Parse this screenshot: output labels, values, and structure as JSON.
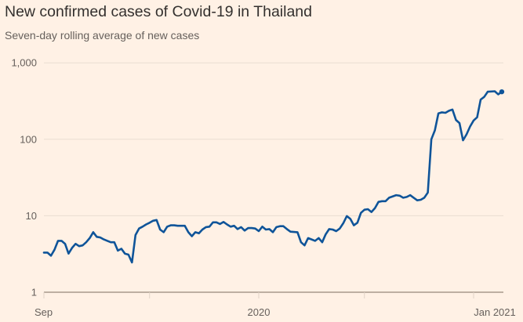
{
  "chart_data": {
    "type": "line",
    "title": "New confirmed cases of Covid-19 in Thailand",
    "subtitle": "Seven-day rolling average of new cases",
    "xlabel": "",
    "ylabel": "",
    "yscale": "log",
    "ylim": [
      1,
      1000
    ],
    "y_ticks": [
      {
        "value": 1,
        "label": "1"
      },
      {
        "value": 10,
        "label": "10"
      },
      {
        "value": 100,
        "label": "100"
      },
      {
        "value": 1000,
        "label": "1,000"
      }
    ],
    "xlim": [
      "2020-09-01",
      "2021-01-09"
    ],
    "x_ticks": [
      {
        "date": "2020-09-01",
        "label": "Sep"
      },
      {
        "date": "2020-10-01",
        "label": ""
      },
      {
        "date": "2020-11-01",
        "label": "2020"
      },
      {
        "date": "2020-12-01",
        "label": ""
      },
      {
        "date": "2021-01-01",
        "label": "Jan 2021"
      }
    ],
    "grid": true,
    "line_color": "#0f5499",
    "end_marker": true,
    "series": [
      {
        "x": [
          "2020-09-01",
          "2020-09-02",
          "2020-09-03",
          "2020-09-04",
          "2020-09-05",
          "2020-09-06",
          "2020-09-07",
          "2020-09-08",
          "2020-09-09",
          "2020-09-10",
          "2020-09-11",
          "2020-09-12",
          "2020-09-13",
          "2020-09-14",
          "2020-09-15",
          "2020-09-16",
          "2020-09-17",
          "2020-09-18",
          "2020-09-19",
          "2020-09-20",
          "2020-09-21",
          "2020-09-22",
          "2020-09-23",
          "2020-09-24",
          "2020-09-25",
          "2020-09-26",
          "2020-09-27",
          "2020-09-28",
          "2020-09-29",
          "2020-09-30",
          "2020-10-01",
          "2020-10-02",
          "2020-10-03",
          "2020-10-04",
          "2020-10-05",
          "2020-10-06",
          "2020-10-07",
          "2020-10-08",
          "2020-10-09",
          "2020-10-11",
          "2020-10-12",
          "2020-10-13",
          "2020-10-14",
          "2020-10-15",
          "2020-10-16",
          "2020-10-17",
          "2020-10-18",
          "2020-10-19",
          "2020-10-20",
          "2020-10-21",
          "2020-10-22",
          "2020-10-23",
          "2020-10-24",
          "2020-10-25",
          "2020-10-26",
          "2020-10-27",
          "2020-10-28",
          "2020-10-29",
          "2020-10-30",
          "2020-10-31",
          "2020-11-01",
          "2020-11-02",
          "2020-11-03",
          "2020-11-04",
          "2020-11-05",
          "2020-11-06",
          "2020-11-07",
          "2020-11-08",
          "2020-11-09",
          "2020-11-10",
          "2020-11-12",
          "2020-11-13",
          "2020-11-14",
          "2020-11-15",
          "2020-11-16",
          "2020-11-17",
          "2020-11-18",
          "2020-11-19",
          "2020-11-20",
          "2020-11-21",
          "2020-11-22",
          "2020-11-23",
          "2020-11-24",
          "2020-11-25",
          "2020-11-26",
          "2020-11-27",
          "2020-11-28",
          "2020-11-29",
          "2020-11-30",
          "2020-12-01",
          "2020-12-02",
          "2020-12-03",
          "2020-12-04",
          "2020-12-05",
          "2020-12-06",
          "2020-12-07",
          "2020-12-08",
          "2020-12-10",
          "2020-12-11",
          "2020-12-12",
          "2020-12-13",
          "2020-12-14",
          "2020-12-15",
          "2020-12-16",
          "2020-12-17",
          "2020-12-18",
          "2020-12-19",
          "2020-12-20",
          "2020-12-21",
          "2020-12-22",
          "2020-12-23",
          "2020-12-24",
          "2020-12-25",
          "2020-12-26",
          "2020-12-27",
          "2020-12-28",
          "2020-12-29",
          "2020-12-30",
          "2020-12-31",
          "2021-01-01",
          "2021-01-02",
          "2021-01-03",
          "2021-01-04",
          "2021-01-05",
          "2021-01-07",
          "2021-01-08",
          "2021-01-09"
        ],
        "y": [
          3.3,
          3.3,
          3.0,
          3.6,
          4.7,
          4.7,
          4.3,
          3.2,
          3.8,
          4.3,
          4.0,
          4.1,
          4.5,
          5.1,
          6.1,
          5.3,
          5.2,
          4.9,
          4.7,
          4.5,
          4.5,
          3.5,
          3.7,
          3.2,
          3.1,
          2.45,
          5.6,
          6.8,
          7.2,
          7.7,
          8.1,
          8.6,
          8.8,
          6.6,
          6.1,
          7.2,
          7.5,
          7.5,
          7.4,
          7.4,
          6.1,
          5.4,
          6.1,
          5.9,
          6.6,
          7.1,
          7.2,
          8.2,
          8.2,
          7.8,
          8.3,
          7.7,
          7.2,
          7.4,
          6.7,
          7.1,
          6.4,
          6.9,
          6.9,
          6.8,
          6.3,
          7.2,
          6.6,
          6.7,
          6.1,
          7.1,
          7.3,
          7.3,
          6.7,
          6.2,
          6.1,
          4.5,
          4.1,
          5.1,
          4.9,
          4.7,
          5.1,
          4.5,
          5.7,
          6.7,
          6.6,
          6.3,
          6.8,
          8.0,
          9.9,
          9.1,
          7.5,
          8.1,
          10.9,
          12,
          12.2,
          11.2,
          12.6,
          15.2,
          15.5,
          15.5,
          17.2,
          18.6,
          18.3,
          17.2,
          17.6,
          18.6,
          17.2,
          15.9,
          16.2,
          17.2,
          20.1,
          100,
          131,
          218,
          225,
          222,
          236,
          245,
          179,
          163,
          97,
          116,
          147,
          176,
          194,
          331,
          358,
          419,
          425,
          387,
          418
        ]
      }
    ]
  }
}
